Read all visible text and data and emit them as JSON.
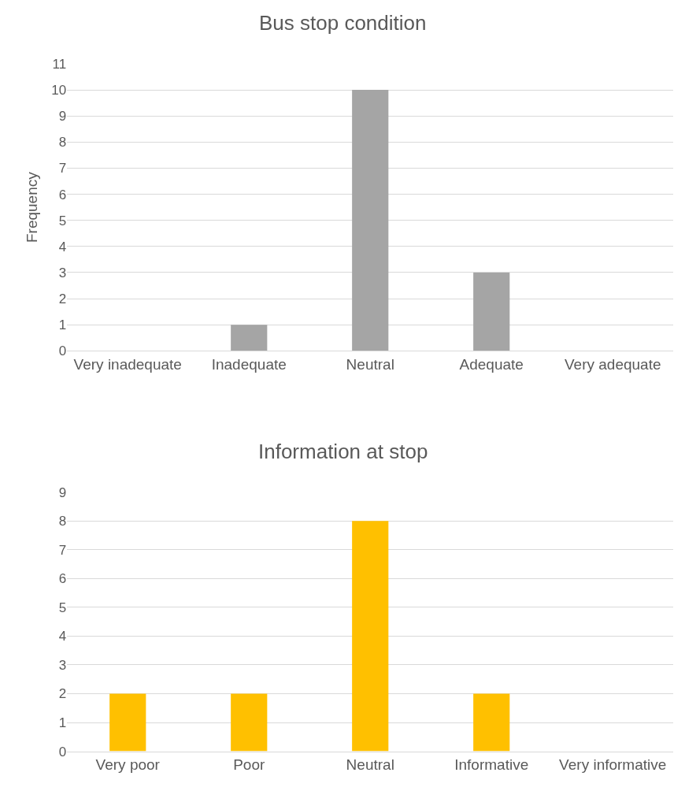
{
  "chart_data": [
    {
      "type": "bar",
      "title": "Bus stop condition",
      "ylabel": "Frequency",
      "categories": [
        "Very inadequate",
        "Inadequate",
        "Neutral",
        "Adequate",
        "Very adequate"
      ],
      "series": [
        {
          "color": "#a5a5a5",
          "values": [
            0,
            1,
            10,
            3,
            0
          ]
        }
      ],
      "ylim": [
        0,
        11
      ],
      "yticks": [
        0,
        1,
        2,
        3,
        4,
        5,
        6,
        7,
        8,
        9,
        10,
        11
      ],
      "grid": "y"
    },
    {
      "type": "bar",
      "title": "Information at stop",
      "categories": [
        "Very poor",
        "Poor",
        "Neutral",
        "Informative",
        "Very informative"
      ],
      "series": [
        {
          "color": "#ffc000",
          "values": [
            2,
            2,
            8,
            2,
            0
          ]
        }
      ],
      "ylim": [
        0,
        9
      ],
      "yticks": [
        0,
        1,
        2,
        3,
        4,
        5,
        6,
        7,
        8,
        9
      ],
      "grid": "y"
    }
  ]
}
